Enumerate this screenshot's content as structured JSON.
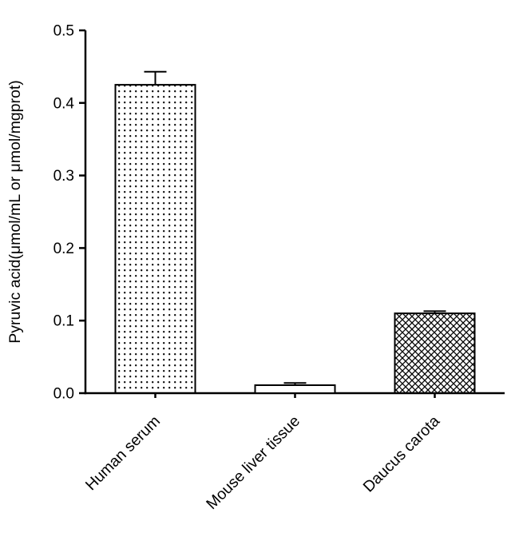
{
  "chart_data": {
    "type": "bar",
    "title": "",
    "xlabel": "",
    "ylabel": "Pyruvic acid(μmol/mL or μmol/mgprot)",
    "categories": [
      "Human serum",
      "Mouse liver tissue",
      "Daucus carota"
    ],
    "values": [
      0.425,
      0.011,
      0.11
    ],
    "errors": [
      0.018,
      0.003,
      0.003
    ],
    "ylim": [
      0,
      0.5
    ],
    "ytick_step": 0.1,
    "ytick_labels": [
      "0.0",
      "0.1",
      "0.2",
      "0.3",
      "0.4",
      "0.5"
    ],
    "bar_patterns": [
      "dots",
      "plain",
      "crosshatch"
    ],
    "bar_fill": "#ffffff",
    "bar_stroke": "#000000",
    "grid": false,
    "legend_position": "none"
  },
  "colors": {
    "axis": "#000000",
    "background": "#ffffff"
  }
}
